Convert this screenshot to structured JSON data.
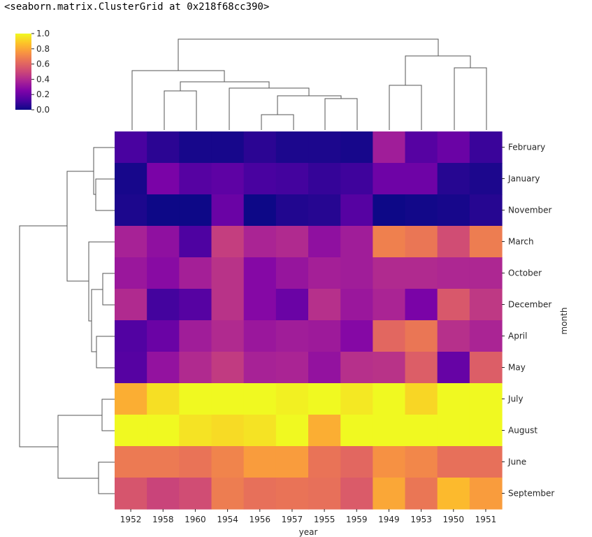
{
  "output": {
    "repr_text": "<seaborn.matrix.ClusterGrid at 0x218f68cc390>"
  },
  "chart_data": {
    "type": "heatmap",
    "colormap": "plasma",
    "xlabel": "year",
    "ylabel": "month",
    "columns": [
      "1952",
      "1958",
      "1960",
      "1954",
      "1956",
      "1957",
      "1955",
      "1959",
      "1949",
      "1953",
      "1950",
      "1951"
    ],
    "rows": [
      "February",
      "January",
      "November",
      "March",
      "October",
      "December",
      "April",
      "May",
      "July",
      "August",
      "June",
      "September"
    ],
    "values": [
      [
        0.12,
        0.06,
        0.02,
        0.02,
        0.06,
        0.03,
        0.03,
        0.02,
        0.35,
        0.15,
        0.2,
        0.09
      ],
      [
        0.02,
        0.24,
        0.15,
        0.17,
        0.12,
        0.11,
        0.08,
        0.1,
        0.21,
        0.21,
        0.05,
        0.03
      ],
      [
        0.03,
        0.0,
        0.0,
        0.2,
        0.0,
        0.04,
        0.05,
        0.15,
        0.0,
        0.01,
        0.02,
        0.05
      ],
      [
        0.37,
        0.3,
        0.13,
        0.47,
        0.38,
        0.4,
        0.3,
        0.35,
        0.69,
        0.66,
        0.52,
        0.68
      ],
      [
        0.33,
        0.28,
        0.36,
        0.43,
        0.27,
        0.32,
        0.36,
        0.35,
        0.4,
        0.4,
        0.39,
        0.39
      ],
      [
        0.4,
        0.11,
        0.15,
        0.43,
        0.27,
        0.2,
        0.42,
        0.33,
        0.38,
        0.24,
        0.56,
        0.45
      ],
      [
        0.14,
        0.2,
        0.35,
        0.4,
        0.33,
        0.35,
        0.34,
        0.27,
        0.61,
        0.66,
        0.42,
        0.38
      ],
      [
        0.15,
        0.31,
        0.4,
        0.46,
        0.37,
        0.38,
        0.31,
        0.42,
        0.43,
        0.58,
        0.19,
        0.58
      ],
      [
        0.82,
        0.94,
        1.0,
        1.0,
        1.0,
        0.98,
        1.0,
        0.96,
        1.0,
        0.92,
        1.0,
        1.0
      ],
      [
        1.0,
        1.0,
        0.95,
        0.93,
        0.95,
        1.0,
        0.82,
        1.0,
        1.0,
        1.0,
        1.0,
        1.0
      ],
      [
        0.67,
        0.67,
        0.65,
        0.7,
        0.77,
        0.77,
        0.65,
        0.61,
        0.74,
        0.71,
        0.64,
        0.64
      ],
      [
        0.55,
        0.49,
        0.52,
        0.68,
        0.64,
        0.65,
        0.64,
        0.57,
        0.8,
        0.66,
        0.85,
        0.77
      ]
    ],
    "colorbar": {
      "range": [
        0,
        1.0
      ],
      "ticks": [
        "0.0",
        "0.2",
        "0.4",
        "0.6",
        "0.8",
        "1.0"
      ]
    }
  }
}
